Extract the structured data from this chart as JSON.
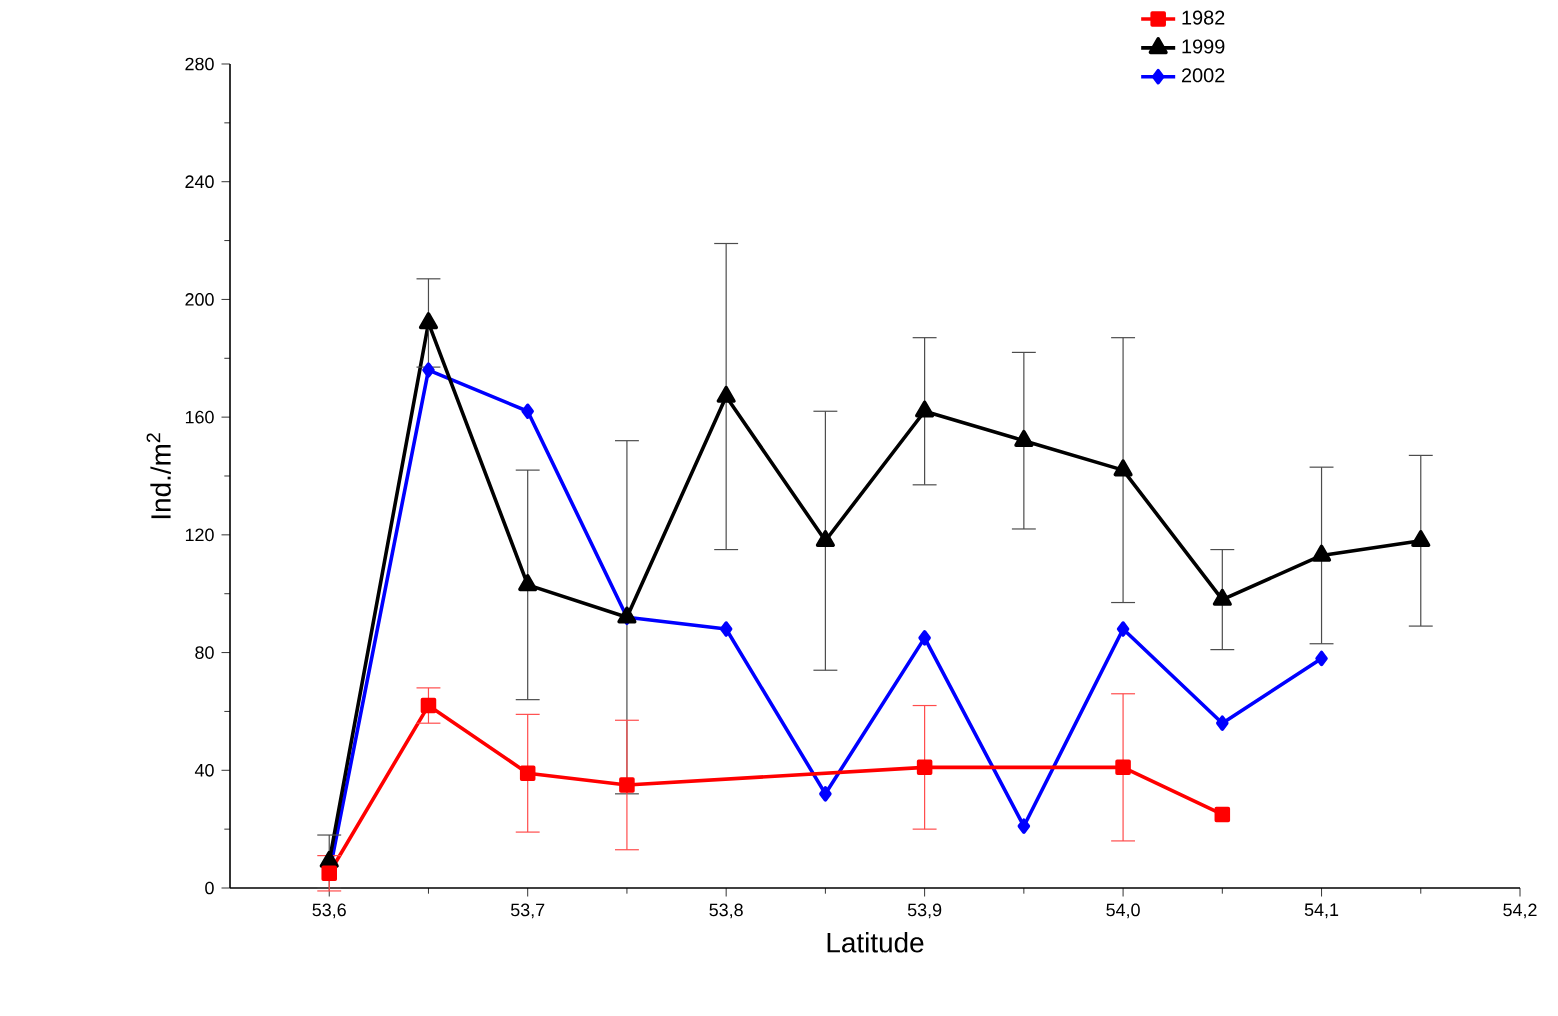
{
  "chart_data": {
    "type": "line",
    "xlabel": "Latitude",
    "ylabel": "Ind./m$^{2}$",
    "xlim": [
      53.55,
      54.2
    ],
    "ylim": [
      0,
      280
    ],
    "xticks": [
      {
        "value": 53.6,
        "label": "53,6"
      },
      {
        "value": 53.7,
        "label": "53,7"
      },
      {
        "value": 53.8,
        "label": "53,8"
      },
      {
        "value": 53.9,
        "label": "53,9"
      },
      {
        "value": 54.0,
        "label": "54,0"
      },
      {
        "value": 54.1,
        "label": "54,1"
      },
      {
        "value": 54.2,
        "label": "54,2"
      }
    ],
    "yticks": [
      0,
      40,
      80,
      120,
      160,
      200,
      240,
      280
    ],
    "legend": "top right",
    "grid": false,
    "line_style": "solid",
    "series": [
      {
        "name": "1982",
        "color": "#ff0000",
        "marker": "square",
        "x": [
          53.6,
          53.65,
          53.7,
          53.75,
          53.9,
          54.0,
          54.05
        ],
        "values": [
          5,
          62,
          39,
          35,
          41,
          41,
          25
        ],
        "errors": [
          6,
          6,
          20,
          22,
          21,
          25,
          null
        ]
      },
      {
        "name": "1999",
        "color": "#000000",
        "marker": "triangle",
        "x": [
          53.6,
          53.65,
          53.7,
          53.75,
          53.8,
          53.85,
          53.9,
          53.95,
          54.0,
          54.05,
          54.1,
          54.15
        ],
        "values": [
          9,
          192,
          103,
          92,
          167,
          118,
          162,
          152,
          142,
          98,
          113,
          118
        ],
        "errors": [
          9,
          15,
          39,
          60,
          52,
          44,
          25,
          30,
          45,
          17,
          30,
          29
        ]
      },
      {
        "name": "2002",
        "color": "#0000ff",
        "marker": "diamond",
        "x": [
          53.6,
          53.65,
          53.7,
          53.75,
          53.8,
          53.85,
          53.9,
          53.95,
          54.0,
          54.05,
          54.1
        ],
        "values": [
          5,
          176,
          162,
          92,
          88,
          32,
          85,
          21,
          88,
          56,
          78
        ]
      }
    ]
  }
}
